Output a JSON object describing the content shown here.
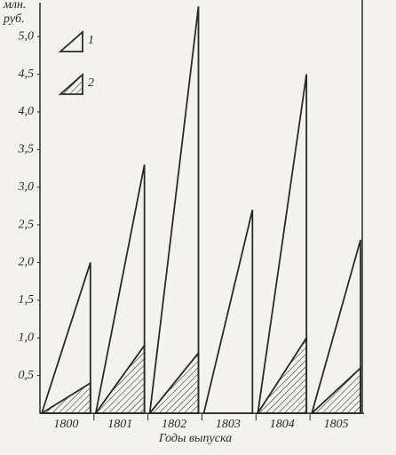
{
  "chart_data": {
    "type": "triangle",
    "y_label": [
      "млн.",
      "руб."
    ],
    "x_label": "Годы выпуска",
    "categories": [
      "1800",
      "1801",
      "1802",
      "1803",
      "1804",
      "1805"
    ],
    "series": [
      {
        "name": "1",
        "color": "#2a2a2a",
        "values": [
          2.0,
          3.3,
          5.4,
          2.7,
          4.5,
          2.3
        ]
      },
      {
        "name": "2",
        "color": "#2a2a2a",
        "values": [
          0.4,
          0.9,
          0.8,
          null,
          1.0,
          0.6
        ]
      }
    ],
    "ylim": [
      0,
      5.45
    ],
    "yticks": [
      {
        "value": 0.5,
        "label": "0,5"
      },
      {
        "value": 1,
        "label": "1,0"
      },
      {
        "value": 1.5,
        "label": "1,5"
      },
      {
        "value": 2,
        "label": "2,0"
      },
      {
        "value": 2.5,
        "label": "2,5"
      },
      {
        "value": 3,
        "label": "3,0"
      },
      {
        "value": 3.5,
        "label": "3,5"
      },
      {
        "value": 4,
        "label": "4,0"
      },
      {
        "value": 4.5,
        "label": "4,5"
      },
      {
        "value": 5,
        "label": "5,0"
      }
    ],
    "legend": "upper left"
  }
}
